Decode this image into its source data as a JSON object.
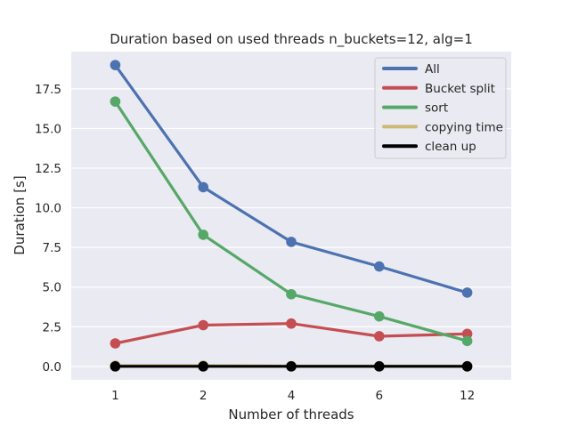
{
  "chart_data": {
    "type": "line",
    "title": "Duration based on used threads n_buckets=12, alg=1",
    "xlabel": "Number of threads",
    "ylabel": "Duration [s]",
    "categories": [
      "1",
      "2",
      "4",
      "6",
      "12"
    ],
    "ylim": [
      -0.85,
      19.85
    ],
    "yticks": [
      "0.0",
      "2.5",
      "5.0",
      "7.5",
      "10.0",
      "12.5",
      "15.0",
      "17.5"
    ],
    "grid": true,
    "legend_position": "top-right",
    "series": [
      {
        "name": "All",
        "color": "#4c72b0",
        "values": [
          19.0,
          11.3,
          7.85,
          6.3,
          4.65
        ]
      },
      {
        "name": "Bucket split",
        "color": "#c44e52",
        "values": [
          1.45,
          2.6,
          2.7,
          1.9,
          2.05
        ]
      },
      {
        "name": "sort",
        "color": "#55a868",
        "values": [
          16.7,
          8.3,
          4.55,
          3.15,
          1.6
        ]
      },
      {
        "name": "copying time",
        "color": "#ccb974",
        "values": [
          0.05,
          0.05,
          0.02,
          0.02,
          0.02
        ]
      },
      {
        "name": "clean up",
        "color": "#000000",
        "values": [
          0.0,
          0.0,
          0.0,
          0.0,
          0.0
        ]
      }
    ]
  }
}
